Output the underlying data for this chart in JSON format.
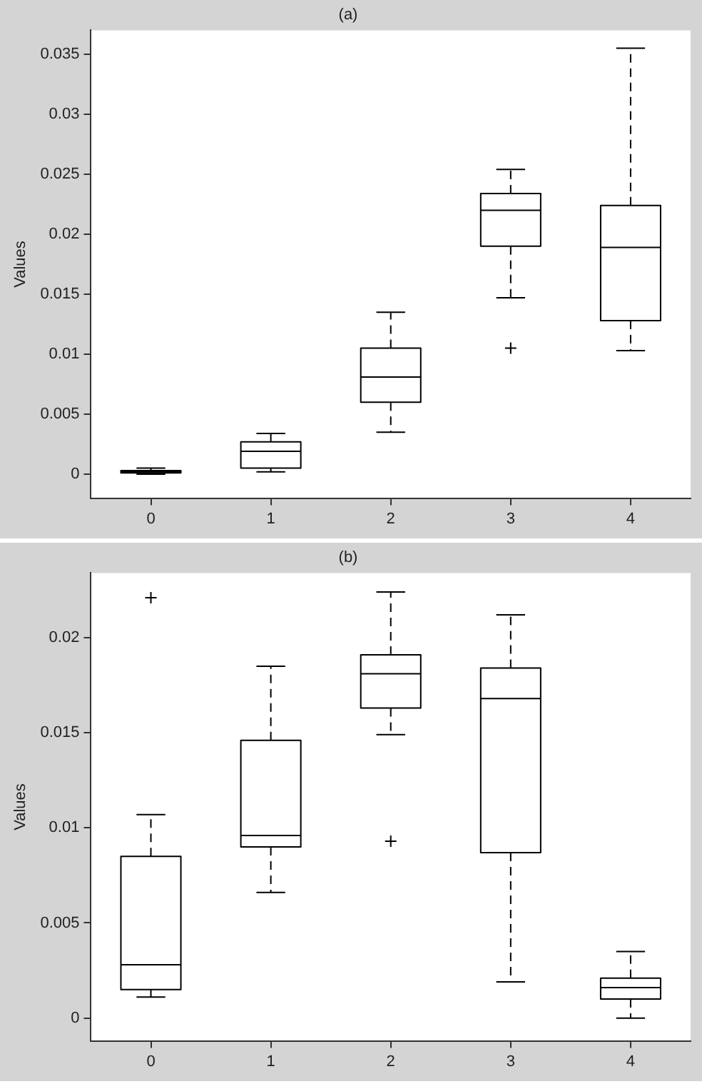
{
  "chart_data": [
    {
      "type": "box",
      "title": "(a)",
      "ylabel": "Values",
      "categories": [
        "0",
        "1",
        "2",
        "3",
        "4"
      ],
      "color": "#000000",
      "boxes": [
        {
          "low": 0,
          "q1": 0.0001,
          "median": 0.0002,
          "q3": 0.0003,
          "high": 0.0005
        },
        {
          "low": 0.0002,
          "q1": 0.0005,
          "median": 0.0019,
          "q3": 0.0027,
          "high": 0.0034
        },
        {
          "low": 0.0035,
          "q1": 0.006,
          "median": 0.0081,
          "q3": 0.0105,
          "high": 0.0135
        },
        {
          "low": 0.0147,
          "q1": 0.019,
          "median": 0.022,
          "q3": 0.0234,
          "high": 0.0254,
          "outliers": [
            0.0105
          ]
        },
        {
          "low": 0.0103,
          "q1": 0.0128,
          "median": 0.0189,
          "q3": 0.0224,
          "high": 0.0355
        }
      ],
      "ylim": [
        -0.002,
        0.037
      ],
      "yticks": [
        0,
        0.005,
        0.01,
        0.015,
        0.02,
        0.025,
        0.03,
        0.035
      ],
      "grid": false
    },
    {
      "type": "box",
      "title": "(b)",
      "ylabel": "Values",
      "categories": [
        "0",
        "1",
        "2",
        "3",
        "4"
      ],
      "color": "#000000",
      "boxes": [
        {
          "low": 0.0011,
          "q1": 0.0015,
          "median": 0.0028,
          "q3": 0.0085,
          "high": 0.0107,
          "outliers": [
            0.0221
          ]
        },
        {
          "low": 0.0066,
          "q1": 0.009,
          "median": 0.0096,
          "q3": 0.0146,
          "high": 0.0185
        },
        {
          "low": 0.0149,
          "q1": 0.0163,
          "median": 0.0181,
          "q3": 0.0191,
          "high": 0.0224,
          "outliers": [
            0.0093
          ]
        },
        {
          "low": 0.0019,
          "q1": 0.0087,
          "median": 0.0168,
          "q3": 0.0184,
          "high": 0.0212
        },
        {
          "low": 0,
          "q1": 0.001,
          "median": 0.0016,
          "q3": 0.0021,
          "high": 0.0035
        }
      ],
      "ylim": [
        -0.0012,
        0.0234
      ],
      "yticks": [
        0,
        0.005,
        0.01,
        0.015,
        0.02
      ],
      "grid": false
    }
  ]
}
